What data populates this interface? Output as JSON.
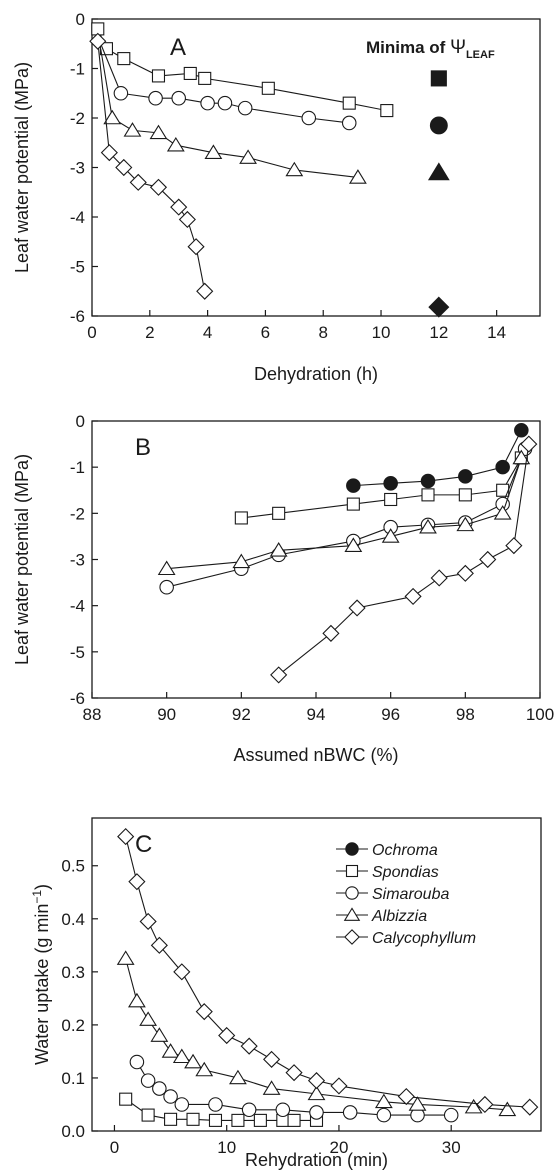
{
  "chart_data": [
    {
      "type": "line",
      "panel_label": "A",
      "xlabel": "Dehydration (h)",
      "ylabel": "Leaf water potential (MPa)",
      "xlim": [
        0,
        15.5
      ],
      "ylim": [
        -6,
        0
      ],
      "xticks": [
        "0",
        "2",
        "4",
        "6",
        "8",
        "10",
        "12",
        "14"
      ],
      "xtick_values": [
        0,
        2,
        4,
        6,
        8,
        10,
        12,
        14
      ],
      "yticks": [
        "0",
        "-1",
        "-2",
        "-3",
        "-4",
        "-5",
        "-6"
      ],
      "ytick_values": [
        0,
        -1,
        -2,
        -3,
        -4,
        -5,
        -6
      ],
      "grid": false,
      "annotation": {
        "prefix": "Minima of ",
        "symbol": "Ψ",
        "subscript": "LEAF"
      },
      "minima": [
        {
          "marker": "square",
          "x": 12,
          "y": -1.2
        },
        {
          "marker": "circle",
          "x": 12,
          "y": -2.15
        },
        {
          "marker": "triangle",
          "x": 12,
          "y": -3.1
        },
        {
          "marker": "diamond",
          "x": 12,
          "y": -5.82
        }
      ],
      "series": [
        {
          "marker": "square",
          "filled": false,
          "x": [
            0.2,
            0.5,
            1.1,
            2.3,
            3.4,
            3.9,
            6.1,
            8.9,
            10.2
          ],
          "y": [
            -0.2,
            -0.6,
            -0.8,
            -1.15,
            -1.1,
            -1.2,
            -1.4,
            -1.7,
            -1.85
          ]
        },
        {
          "marker": "circle",
          "filled": false,
          "x": [
            0.3,
            1.0,
            2.2,
            3.0,
            4.0,
            4.6,
            5.3,
            7.5,
            8.9
          ],
          "y": [
            -0.5,
            -1.5,
            -1.6,
            -1.6,
            -1.7,
            -1.7,
            -1.8,
            -2.0,
            -2.1
          ],
          "first_marker_hidden": true
        },
        {
          "marker": "triangle",
          "filled": false,
          "x": [
            0.3,
            0.7,
            1.4,
            2.3,
            2.9,
            4.2,
            5.4,
            7.0,
            9.2
          ],
          "y": [
            -0.6,
            -2.0,
            -2.25,
            -2.3,
            -2.55,
            -2.7,
            -2.8,
            -3.05,
            -3.2
          ],
          "first_marker_hidden": true
        },
        {
          "marker": "diamond",
          "filled": false,
          "x": [
            0.2,
            0.6,
            1.1,
            1.6,
            2.3,
            3.0,
            3.3,
            3.6,
            3.9
          ],
          "y": [
            -0.45,
            -2.7,
            -3.0,
            -3.3,
            -3.4,
            -3.8,
            -4.05,
            -4.6,
            -5.5
          ]
        }
      ]
    },
    {
      "type": "line",
      "panel_label": "B",
      "xlabel": "Assumed nBWC (%)",
      "ylabel": "Leaf water potential (MPa)",
      "xlim": [
        88,
        100
      ],
      "ylim": [
        -6,
        0
      ],
      "xticks": [
        "88",
        "90",
        "92",
        "94",
        "96",
        "98",
        "100"
      ],
      "xtick_values": [
        88,
        90,
        92,
        94,
        96,
        98,
        100
      ],
      "yticks": [
        "0",
        "-1",
        "-2",
        "-3",
        "-4",
        "-5",
        "-6"
      ],
      "ytick_values": [
        0,
        -1,
        -2,
        -3,
        -4,
        -5,
        -6
      ],
      "grid": false,
      "series": [
        {
          "marker": "square",
          "filled": false,
          "x": [
            92.0,
            93.0,
            95.0,
            96.0,
            97.0,
            98.0,
            99.0,
            99.5
          ],
          "y": [
            -2.1,
            -2.0,
            -1.8,
            -1.7,
            -1.6,
            -1.6,
            -1.5,
            -0.8
          ]
        },
        {
          "marker": "circle",
          "filled": false,
          "x": [
            90.0,
            92.0,
            93.0,
            95.0,
            96.0,
            97.0,
            98.0,
            99.0,
            99.6
          ],
          "y": [
            -3.6,
            -3.2,
            -2.9,
            -2.6,
            -2.3,
            -2.25,
            -2.2,
            -1.8,
            -0.6
          ]
        },
        {
          "marker": "triangle",
          "filled": false,
          "x": [
            90.0,
            92.0,
            93.0,
            95.0,
            96.0,
            97.0,
            98.0,
            99.0,
            99.5
          ],
          "y": [
            -3.2,
            -3.05,
            -2.8,
            -2.7,
            -2.5,
            -2.3,
            -2.25,
            -2.0,
            -0.8
          ]
        },
        {
          "marker": "diamond",
          "filled": false,
          "x": [
            93.0,
            94.4,
            95.1,
            96.6,
            97.3,
            98.0,
            98.6,
            99.3,
            99.7
          ],
          "y": [
            -5.5,
            -4.6,
            -4.05,
            -3.8,
            -3.4,
            -3.3,
            -3.0,
            -2.7,
            -0.5
          ]
        },
        {
          "marker": "circle",
          "filled": true,
          "x": [
            95.0,
            96.0,
            97.0,
            98.0,
            99.0,
            99.5
          ],
          "y": [
            -1.4,
            -1.35,
            -1.3,
            -1.2,
            -1.0,
            -0.2
          ]
        }
      ]
    },
    {
      "type": "line",
      "panel_label": "C",
      "xlabel": "Rehydration (min)",
      "ylabel_main": "Water uptake (g min",
      "ylabel_sup": "−1",
      "ylabel_end": ")",
      "xlim": [
        -2,
        38
      ],
      "ylim": [
        0,
        0.59
      ],
      "xticks": [
        "0",
        "10",
        "20",
        "30"
      ],
      "xtick_values": [
        0,
        10,
        20,
        30
      ],
      "yticks": [
        "0.0",
        "0.1",
        "0.2",
        "0.3",
        "0.4",
        "0.5"
      ],
      "ytick_values": [
        0,
        0.1,
        0.2,
        0.3,
        0.4,
        0.5
      ],
      "grid": false,
      "legend_position": "top-right",
      "legend": [
        {
          "label": "Ochroma",
          "marker": "circle",
          "filled": true
        },
        {
          "label": "Spondias",
          "marker": "square",
          "filled": false
        },
        {
          "label": "Simarouba",
          "marker": "circle",
          "filled": false
        },
        {
          "label": "Albizzia",
          "marker": "triangle",
          "filled": false
        },
        {
          "label": "Calycophyllum",
          "marker": "diamond",
          "filled": false
        }
      ],
      "series": [
        {
          "marker": "square",
          "filled": false,
          "x": [
            1,
            3,
            5,
            7,
            9,
            11,
            13,
            15,
            16,
            18
          ],
          "y": [
            0.06,
            0.03,
            0.022,
            0.022,
            0.02,
            0.02,
            0.02,
            0.02,
            0.02,
            0.02
          ]
        },
        {
          "marker": "circle",
          "filled": false,
          "x": [
            2,
            3,
            4,
            5,
            6,
            9,
            12,
            15,
            18,
            21,
            24,
            27,
            30
          ],
          "y": [
            0.13,
            0.095,
            0.08,
            0.065,
            0.05,
            0.05,
            0.04,
            0.04,
            0.035,
            0.035,
            0.03,
            0.03,
            0.03
          ]
        },
        {
          "marker": "triangle",
          "filled": false,
          "x": [
            1,
            2,
            3,
            4,
            5,
            6,
            7,
            8,
            11,
            14,
            18,
            24,
            27,
            32,
            35
          ],
          "y": [
            0.325,
            0.245,
            0.21,
            0.18,
            0.15,
            0.14,
            0.13,
            0.115,
            0.1,
            0.08,
            0.07,
            0.055,
            0.05,
            0.045,
            0.04
          ]
        },
        {
          "marker": "diamond",
          "filled": false,
          "x": [
            1,
            2,
            3,
            4,
            6,
            8,
            10,
            12,
            14,
            16,
            18,
            20,
            26,
            33,
            37
          ],
          "y": [
            0.555,
            0.47,
            0.395,
            0.35,
            0.3,
            0.225,
            0.18,
            0.16,
            0.135,
            0.11,
            0.095,
            0.085,
            0.065,
            0.05,
            0.045
          ]
        }
      ]
    }
  ]
}
